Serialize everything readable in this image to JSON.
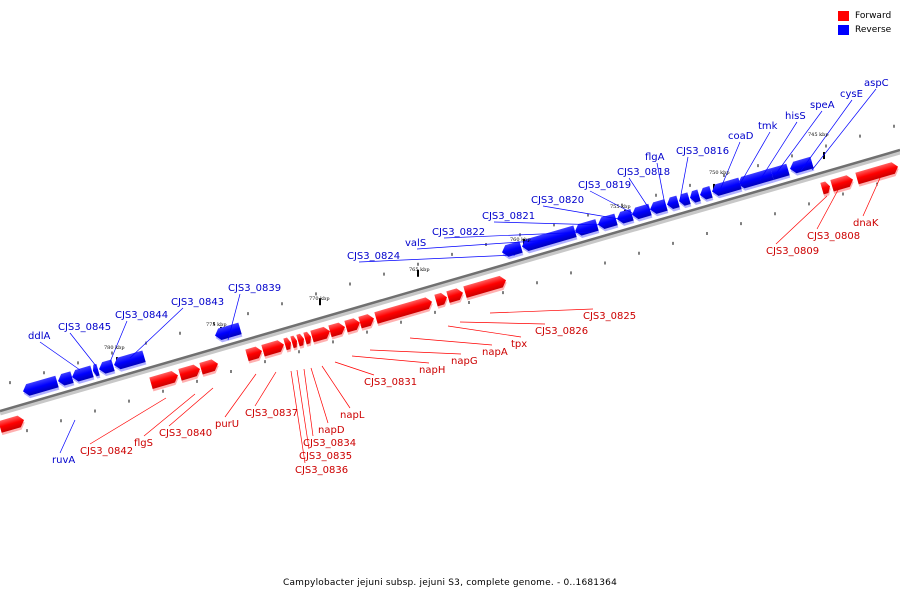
{
  "legend": {
    "items": [
      {
        "label": "Forward",
        "color": "#ff0000"
      },
      {
        "label": "Reverse",
        "color": "#0000ff"
      }
    ]
  },
  "footer": {
    "caption": "Campylobacter jejuni subsp. jejuni S3, complete genome. - 0..1681364"
  },
  "axis": {
    "ticks": [
      "745 kbp",
      "750 kbp",
      "755 kbp",
      "760 kbp",
      "765 kbp",
      "770 kbp",
      "775 kbp",
      "780 kbp"
    ]
  },
  "genes": {
    "reverse_labels": [
      "aspC",
      "cysE",
      "speA",
      "hisS",
      "tmk",
      "coaD",
      "CJS3_0816",
      "flgA",
      "CJS3_0818",
      "CJS3_0819",
      "CJS3_0820",
      "CJS3_0821",
      "CJS3_0822",
      "valS",
      "CJS3_0824",
      "CJS3_0839",
      "CJS3_0843",
      "CJS3_0844",
      "CJS3_0845",
      "ddlA",
      "ruvA"
    ],
    "forward_labels": [
      "dnaK",
      "CJS3_0808",
      "CJS3_0809",
      "CJS3_0825",
      "CJS3_0826",
      "tpx",
      "napA",
      "napG",
      "napH",
      "CJS3_0831",
      "napL",
      "napD",
      "CJS3_0834",
      "CJS3_0835",
      "CJS3_0836",
      "CJS3_0837",
      "purU",
      "CJS3_0840",
      "flgS",
      "CJS3_0842"
    ]
  },
  "colors": {
    "forward": "#ff0000",
    "reverse": "#0000ff",
    "backbone": "#808080"
  }
}
